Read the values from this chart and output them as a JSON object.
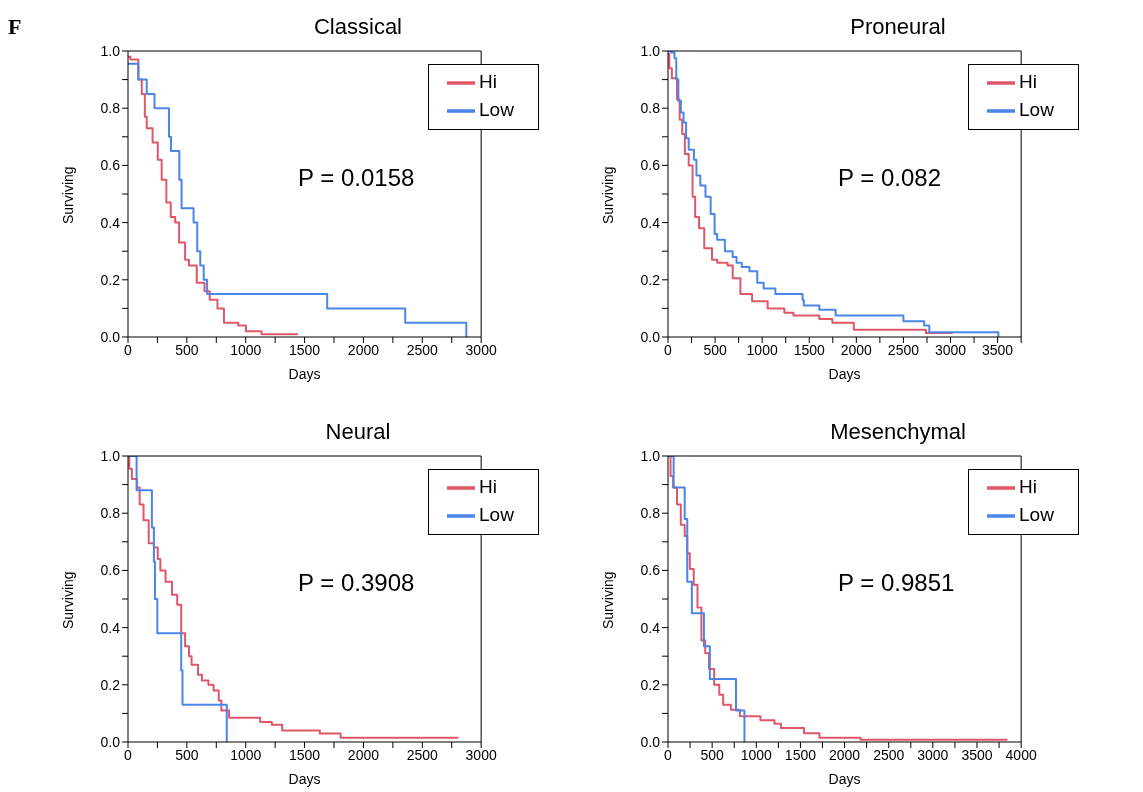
{
  "chart_data": [
    {
      "type": "step",
      "title": "Classical",
      "xlabel": "Days",
      "ylabel": "Surviving",
      "annotations": [
        "F",
        "P = 0.0158"
      ],
      "legend": "top right",
      "grid": false,
      "marker": "none",
      "line_style": "solid",
      "xlim": [
        0,
        3000
      ],
      "xticks": [
        0,
        {
          "value": 250,
          "label": null
        },
        500,
        {
          "value": 750,
          "label": null
        },
        1000,
        {
          "value": 1250,
          "label": null
        },
        1500,
        {
          "value": 1750,
          "label": null
        },
        2000,
        {
          "value": 2250,
          "label": null
        },
        2500,
        {
          "value": 2750,
          "label": null
        },
        3000
      ],
      "ylim": [
        0,
        1
      ],
      "yticks": [
        {
          "value": 0,
          "label": "0.0"
        },
        {
          "value": 0.1,
          "label": null
        },
        {
          "value": 0.2,
          "label": "0.2"
        },
        {
          "value": 0.3,
          "label": null
        },
        {
          "value": 0.4,
          "label": "0.4"
        },
        {
          "value": 0.5,
          "label": null
        },
        {
          "value": 0.6,
          "label": "0.6"
        },
        {
          "value": 0.7,
          "label": null
        },
        {
          "value": 0.8,
          "label": "0.8"
        },
        {
          "value": 0.9,
          "label": null
        },
        {
          "value": 1,
          "label": "1.0"
        }
      ],
      "series": [
        {
          "name": "Hi",
          "color": "#e0576a",
          "x": [
            0,
            20,
            88,
            117,
            143,
            159,
            209,
            253,
            286,
            326,
            363,
            401,
            434,
            485,
            518,
            584,
            650,
            694,
            760,
            815,
            936,
            1002,
            1134,
            1443
          ],
          "values": [
            0.98,
            0.97,
            0.9,
            0.85,
            0.77,
            0.73,
            0.68,
            0.62,
            0.55,
            0.47,
            0.42,
            0.4,
            0.33,
            0.27,
            0.25,
            0.19,
            0.16,
            0.13,
            0.1,
            0.05,
            0.04,
            0.02,
            0.01,
            0.01
          ]
        },
        {
          "name": "Low",
          "color": "#4a86e8",
          "x": [
            0,
            88,
            159,
            225,
            348,
            365,
            436,
            455,
            557,
            588,
            614,
            643,
            672,
            1692,
            2355,
            2874
          ],
          "values": [
            0.955,
            0.9,
            0.85,
            0.8,
            0.7,
            0.65,
            0.55,
            0.45,
            0.4,
            0.3,
            0.25,
            0.2,
            0.15,
            0.1,
            0.05,
            0
          ]
        }
      ]
    },
    {
      "type": "step",
      "title": "Proneural",
      "xlabel": "Days",
      "ylabel": "Surviving",
      "annotations": [
        "P = 0.082"
      ],
      "legend": "top right",
      "grid": false,
      "marker": "none",
      "line_style": "solid",
      "xlim": [
        0,
        3750
      ],
      "xticks": [
        0,
        {
          "value": 250,
          "label": null
        },
        500,
        {
          "value": 750,
          "label": null
        },
        1000,
        {
          "value": 1250,
          "label": null
        },
        1500,
        {
          "value": 1750,
          "label": null
        },
        2000,
        {
          "value": 2250,
          "label": null
        },
        2500,
        {
          "value": 2750,
          "label": null
        },
        3000,
        {
          "value": 3250,
          "label": null
        },
        3500,
        {
          "value": 3750,
          "label": null
        }
      ],
      "ylim": [
        0,
        1
      ],
      "yticks": [
        {
          "value": 0,
          "label": "0.0"
        },
        {
          "value": 0.1,
          "label": null
        },
        {
          "value": 0.2,
          "label": "0.2"
        },
        {
          "value": 0.3,
          "label": null
        },
        {
          "value": 0.4,
          "label": "0.4"
        },
        {
          "value": 0.5,
          "label": null
        },
        {
          "value": 0.6,
          "label": "0.6"
        },
        {
          "value": 0.7,
          "label": null
        },
        {
          "value": 0.8,
          "label": "0.8"
        },
        {
          "value": 0.9,
          "label": null
        },
        {
          "value": 1,
          "label": "1.0"
        }
      ],
      "series": [
        {
          "name": "Hi",
          "color": "#e0576a",
          "x": [
            0,
            14,
            41,
            96,
            124,
            151,
            179,
            220,
            261,
            288,
            330,
            385,
            467,
            522,
            632,
            687,
            769,
            893,
            1058,
            1236,
            1332,
            1607,
            1745,
            1973,
            2739,
            3022
          ],
          "values": [
            0.99,
            0.94,
            0.905,
            0.83,
            0.76,
            0.71,
            0.64,
            0.6,
            0.49,
            0.42,
            0.38,
            0.31,
            0.27,
            0.26,
            0.25,
            0.205,
            0.15,
            0.125,
            0.1,
            0.085,
            0.075,
            0.063,
            0.05,
            0.025,
            0.014,
            0.014
          ]
        },
        {
          "name": "Low",
          "color": "#4a86e8",
          "x": [
            0,
            33,
            69,
            88,
            110,
            137,
            165,
            192,
            220,
            275,
            302,
            343,
            398,
            453,
            495,
            522,
            604,
            687,
            728,
            783,
            865,
            948,
            1016,
            1140,
            1429,
            1442,
            1607,
            1780,
            2500,
            2720,
            2775,
            3508
          ],
          "values": [
            1,
            0.995,
            0.975,
            0.9,
            0.825,
            0.785,
            0.75,
            0.695,
            0.655,
            0.62,
            0.565,
            0.53,
            0.49,
            0.43,
            0.36,
            0.34,
            0.3,
            0.28,
            0.26,
            0.245,
            0.23,
            0.19,
            0.17,
            0.15,
            0.13,
            0.11,
            0.095,
            0.075,
            0.055,
            0.04,
            0.017,
            0
          ]
        }
      ]
    },
    {
      "type": "step",
      "title": "Neural",
      "xlabel": "Days",
      "ylabel": "Surviving",
      "annotations": [
        "P = 0.3908"
      ],
      "legend": "top right",
      "grid": false,
      "marker": "none",
      "line_style": "solid",
      "xlim": [
        0,
        3000
      ],
      "xticks": [
        0,
        {
          "value": 250,
          "label": null
        },
        500,
        {
          "value": 750,
          "label": null
        },
        1000,
        {
          "value": 1250,
          "label": null
        },
        1500,
        {
          "value": 1750,
          "label": null
        },
        2000,
        {
          "value": 2250,
          "label": null
        },
        2500,
        {
          "value": 2750,
          "label": null
        },
        3000
      ],
      "ylim": [
        0,
        1
      ],
      "yticks": [
        {
          "value": 0,
          "label": "0.0"
        },
        {
          "value": 0.1,
          "label": null
        },
        {
          "value": 0.2,
          "label": "0.2"
        },
        {
          "value": 0.3,
          "label": null
        },
        {
          "value": 0.4,
          "label": "0.4"
        },
        {
          "value": 0.5,
          "label": null
        },
        {
          "value": 0.6,
          "label": "0.6"
        },
        {
          "value": 0.7,
          "label": null
        },
        {
          "value": 0.8,
          "label": "0.8"
        },
        {
          "value": 0.9,
          "label": null
        },
        {
          "value": 1,
          "label": "1.0"
        }
      ],
      "series": [
        {
          "name": "Hi",
          "color": "#e0576a",
          "x": [
            0,
            11,
            33,
            77,
            99,
            132,
            176,
            220,
            253,
            275,
            319,
            374,
            418,
            452,
            485,
            518,
            540,
            595,
            628,
            683,
            727,
            771,
            793,
            859,
            1123,
            1222,
            1310,
            1630,
            1806,
            2808
          ],
          "values": [
            1,
            0.955,
            0.92,
            0.89,
            0.83,
            0.775,
            0.695,
            0.68,
            0.64,
            0.6,
            0.56,
            0.515,
            0.48,
            0.38,
            0.335,
            0.3,
            0.27,
            0.235,
            0.215,
            0.2,
            0.18,
            0.145,
            0.11,
            0.085,
            0.07,
            0.06,
            0.04,
            0.03,
            0.015,
            0.015
          ]
        },
        {
          "name": "Low",
          "color": "#4a86e8",
          "x": [
            0,
            73,
            203,
            220,
            229,
            249,
            452,
            463,
            839
          ],
          "values": [
            1,
            0.88,
            0.75,
            0.63,
            0.5,
            0.38,
            0.25,
            0.13,
            0
          ]
        }
      ]
    },
    {
      "type": "step",
      "title": "Mesenchymal",
      "xlabel": "Days",
      "ylabel": "Surviving",
      "annotations": [
        "P = 0.9851"
      ],
      "legend": "top right",
      "grid": false,
      "marker": "none",
      "line_style": "solid",
      "xlim": [
        0,
        4000
      ],
      "xticks": [
        0,
        {
          "value": 250,
          "label": null
        },
        500,
        {
          "value": 750,
          "label": null
        },
        1000,
        {
          "value": 1250,
          "label": null
        },
        1500,
        {
          "value": 1750,
          "label": null
        },
        2000,
        {
          "value": 2250,
          "label": null
        },
        2500,
        {
          "value": 2750,
          "label": null
        },
        3000,
        {
          "value": 3250,
          "label": null
        },
        3500,
        {
          "value": 3750,
          "label": null
        },
        4000
      ],
      "ylim": [
        0,
        1
      ],
      "yticks": [
        {
          "value": 0,
          "label": "0.0"
        },
        {
          "value": 0.1,
          "label": null
        },
        {
          "value": 0.2,
          "label": "0.2"
        },
        {
          "value": 0.3,
          "label": null
        },
        {
          "value": 0.4,
          "label": "0.4"
        },
        {
          "value": 0.5,
          "label": null
        },
        {
          "value": 0.6,
          "label": "0.6"
        },
        {
          "value": 0.7,
          "label": null
        },
        {
          "value": 0.8,
          "label": "0.8"
        },
        {
          "value": 0.9,
          "label": null
        },
        {
          "value": 1,
          "label": "1.0"
        }
      ],
      "series": [
        {
          "name": "Hi",
          "color": "#e0576a",
          "x": [
            0,
            29,
            58,
            102,
            145,
            189,
            218,
            247,
            291,
            334,
            378,
            422,
            465,
            523,
            581,
            625,
            712,
            814,
            1047,
            1206,
            1279,
            1541,
            1715,
            2180,
            3846
          ],
          "values": [
            1,
            0.93,
            0.89,
            0.83,
            0.76,
            0.72,
            0.66,
            0.605,
            0.55,
            0.47,
            0.355,
            0.31,
            0.255,
            0.2,
            0.165,
            0.13,
            0.113,
            0.09,
            0.076,
            0.064,
            0.049,
            0.031,
            0.015,
            0.008,
            0.008
          ]
        },
        {
          "name": "Low",
          "color": "#4a86e8",
          "x": [
            0,
            64,
            189,
            218,
            270,
            407,
            474,
            770,
            866
          ],
          "values": [
            1,
            0.89,
            0.78,
            0.56,
            0.45,
            0.335,
            0.22,
            0.11,
            0
          ]
        }
      ]
    }
  ]
}
